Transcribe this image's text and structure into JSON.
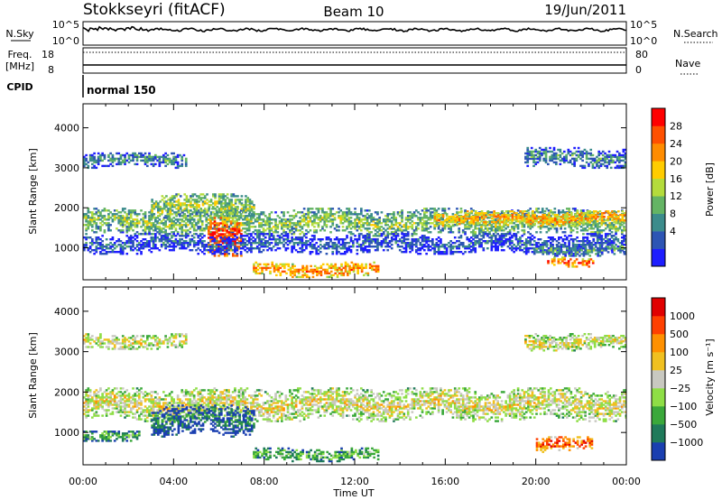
{
  "header": {
    "station": "Stokkseyri (fitACF)",
    "beam": "Beam 10",
    "date": "19/Jun/2011"
  },
  "top_panels": {
    "nsky_label": "N.Sky",
    "nsearch_label": "N.Search",
    "nsky_ticks": [
      "10^5",
      "10^0"
    ],
    "nsearch_ticks": [
      "10^5",
      "10^0"
    ],
    "freq_label_1": "Freq.",
    "freq_label_2": "[MHz]",
    "freq_ticks": [
      "18",
      "8"
    ],
    "nave_label": "Nave",
    "nave_ticks": [
      "80",
      "0"
    ],
    "cpid_label": "CPID",
    "cpid_value": "normal 150"
  },
  "colors": {
    "power_scale": [
      "#1e1eff",
      "#2d55b4",
      "#3c8c8c",
      "#64b464",
      "#b4dc3c",
      "#ffcc00",
      "#ff8c00",
      "#ff5000",
      "#ff0000"
    ],
    "velocity_scale": [
      "#1a3fb0",
      "#1f7a5a",
      "#3aa83a",
      "#8ede46",
      "#c8c8c0",
      "#f0c020",
      "#ff9000",
      "#ff4000",
      "#e00000"
    ],
    "ground_scatter": "#c8c8c0"
  },
  "chart_data": [
    {
      "type": "heatmap",
      "panel": "power",
      "ylabel": "Slant Range [km]",
      "xlabel": "Time UT",
      "x_ticks": [
        "00:00",
        "04:00",
        "08:00",
        "12:00",
        "16:00",
        "20:00",
        "00:00"
      ],
      "y_ticks": [
        "1000",
        "2000",
        "3000",
        "4000"
      ],
      "ylim": [
        200,
        4600
      ],
      "xlim_hours": [
        0,
        24
      ],
      "colorbar_label": "Power [dB]",
      "colorbar_ticks": [
        "28",
        "24",
        "20",
        "16",
        "12",
        "8",
        "4"
      ],
      "bands": [
        {
          "t0": 0.0,
          "t1": 24.0,
          "r_center": 1650,
          "r_width": 350,
          "level": 0.45
        },
        {
          "t0": 3.0,
          "t1": 7.5,
          "r_center": 2050,
          "r_width": 300,
          "level": 0.5
        },
        {
          "t0": 5.5,
          "t1": 7.0,
          "r_center": 1300,
          "r_width": 500,
          "level": 0.9
        },
        {
          "t0": 0.0,
          "t1": 24.0,
          "r_center": 1100,
          "r_width": 250,
          "level": 0.2
        },
        {
          "t0": 7.5,
          "t1": 13.0,
          "r_center": 450,
          "r_width": 180,
          "level": 0.75
        },
        {
          "t0": 0.0,
          "t1": 4.5,
          "r_center": 3200,
          "r_width": 200,
          "level": 0.3
        },
        {
          "t0": 19.5,
          "t1": 24.0,
          "r_center": 3250,
          "r_width": 250,
          "level": 0.3
        },
        {
          "t0": 20.5,
          "t1": 22.5,
          "r_center": 650,
          "r_width": 120,
          "level": 0.8
        },
        {
          "t0": 20.0,
          "t1": 24.0,
          "r_center": 950,
          "r_width": 150,
          "level": 0.35
        },
        {
          "t0": 15.5,
          "t1": 24.0,
          "r_center": 1750,
          "r_width": 200,
          "level": 0.7
        }
      ]
    },
    {
      "type": "heatmap",
      "panel": "velocity",
      "ylabel": "Slant Range [km]",
      "xlabel": "Time UT",
      "x_ticks": [
        "00:00",
        "04:00",
        "08:00",
        "12:00",
        "16:00",
        "20:00",
        "00:00"
      ],
      "y_ticks": [
        "1000",
        "2000",
        "3000",
        "4000"
      ],
      "ylim": [
        200,
        4600
      ],
      "xlim_hours": [
        0,
        24
      ],
      "colorbar_label": "Velocity [m s⁻¹]",
      "colorbar_ticks": [
        "1000",
        "500",
        "100",
        "25",
        "−25",
        "−100",
        "−500",
        "−1000"
      ],
      "bands": [
        {
          "t0": 0.0,
          "t1": 24.0,
          "r_center": 1700,
          "r_width": 420,
          "level": 0.55
        },
        {
          "t0": 3.0,
          "t1": 7.5,
          "r_center": 1300,
          "r_width": 400,
          "level": 0.15
        },
        {
          "t0": 0.0,
          "t1": 4.5,
          "r_center": 3250,
          "r_width": 180,
          "level": 0.55
        },
        {
          "t0": 19.5,
          "t1": 24.0,
          "r_center": 3250,
          "r_width": 220,
          "level": 0.55
        },
        {
          "t0": 7.5,
          "t1": 13.0,
          "r_center": 450,
          "r_width": 160,
          "level": 0.35
        },
        {
          "t0": 20.0,
          "t1": 22.5,
          "r_center": 700,
          "r_width": 180,
          "level": 0.85
        },
        {
          "t0": 0.0,
          "t1": 2.5,
          "r_center": 900,
          "r_width": 150,
          "level": 0.3
        }
      ]
    }
  ]
}
